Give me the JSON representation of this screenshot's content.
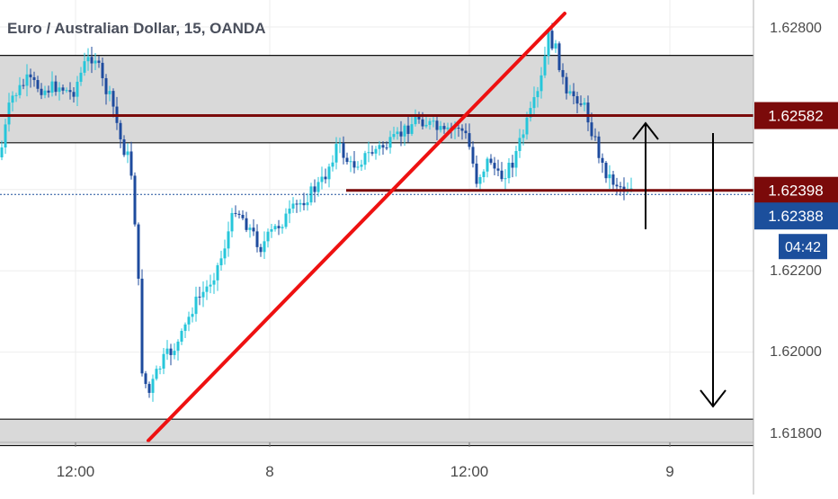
{
  "chart_data": {
    "type": "candlestick",
    "title": "Euro / Australian Dollar, 15, OANDA",
    "x_tick_labels": [
      "12:00",
      "8",
      "12:00",
      "9"
    ],
    "y_tick_labels": [
      "1.62800",
      "1.62200",
      "1.62000",
      "1.61800"
    ],
    "ylim": [
      1.6174,
      1.62855
    ],
    "price_labels": [
      {
        "text": "1.62582",
        "value": 1.62582,
        "color": "#7b0a0a"
      },
      {
        "text": "1.62398",
        "value": 1.62398,
        "color": "#7b0a0a"
      },
      {
        "text": "1.62388",
        "value": 1.62388,
        "color": "#1c4f9c"
      }
    ],
    "countdown_label": "04:42",
    "zones": [
      {
        "name": "resistance-zone",
        "top": 1.6273,
        "bottom": 1.62515,
        "color": "#d9d9d9"
      },
      {
        "name": "support-zone",
        "top": 1.61835,
        "bottom": 1.6177,
        "color": "#d9d9d9"
      }
    ],
    "horizontal_lines": [
      {
        "name": "resistance-line",
        "value": 1.62582,
        "color": "#7b0a0a"
      },
      {
        "name": "breakout-line",
        "value": 1.62398,
        "color": "#7b0a0a"
      }
    ],
    "current_price": 1.62388,
    "trendline": {
      "color": "#ee1111"
    },
    "arrows": [
      {
        "name": "up-arrow-icon",
        "direction": "up"
      },
      {
        "name": "down-arrow-icon",
        "direction": "down"
      }
    ],
    "colors": {
      "up": "#26c6da",
      "down": "#1e4b9e",
      "zone": "#d9d9d9",
      "grid": "#eeeeee"
    }
  }
}
